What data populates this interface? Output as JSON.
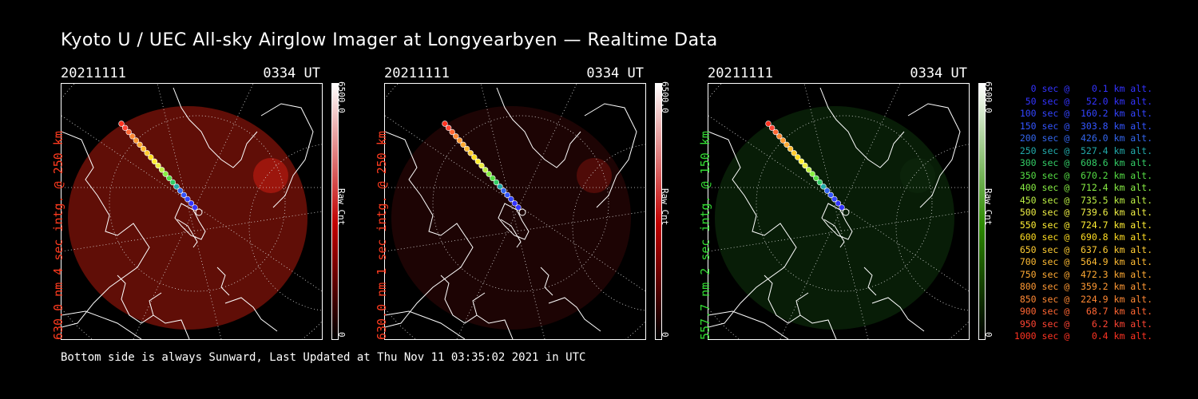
{
  "title": "Kyoto U / UEC All-sky Airglow Imager at Longyearbyen — Realtime Data",
  "panels": [
    {
      "date": "20211111",
      "time": "0334 UT",
      "label": "630.0 nm 4 sec intg. @ 250 km",
      "label_color": "#ff3b1f",
      "cbar_max": "6500.0",
      "cbar_unit": "Raw Cnt",
      "cbar_min": "0",
      "cbar_color": "#c00000",
      "glow": "#6a0f08",
      "glow_opacity": 0.9
    },
    {
      "date": "20211111",
      "time": "0334 UT",
      "label": "630.0 nm 1 sec intg. @ 250 km",
      "label_color": "#ff3b1f",
      "cbar_max": "6500.0",
      "cbar_unit": "Raw Cnt",
      "cbar_min": "0",
      "cbar_color": "#c00000",
      "glow": "#2a0505",
      "glow_opacity": 0.7
    },
    {
      "date": "20211111",
      "time": "0334 UT",
      "label": "557.7 nm 2 sec intg. @ 150 km",
      "label_color": "#33dd33",
      "cbar_max": "6500.0",
      "cbar_unit": "Raw Cnt",
      "cbar_min": "0",
      "cbar_color": "#2c8a00",
      "glow": "#0c2a0a",
      "glow_opacity": 0.7
    }
  ],
  "legend": [
    {
      "text": "   0 sec @    0.1 km alt.",
      "color": "#3333ff"
    },
    {
      "text": "  50 sec @   52.0 km alt.",
      "color": "#3333ff"
    },
    {
      "text": " 100 sec @  160.2 km alt.",
      "color": "#3344ff"
    },
    {
      "text": " 150 sec @  303.8 km alt.",
      "color": "#3355ff"
    },
    {
      "text": " 200 sec @  426.0 km alt.",
      "color": "#3366ee"
    },
    {
      "text": " 250 sec @  527.4 km alt.",
      "color": "#22aaaa"
    },
    {
      "text": " 300 sec @  608.6 km alt.",
      "color": "#33cc66"
    },
    {
      "text": " 350 sec @  670.2 km alt.",
      "color": "#55dd44"
    },
    {
      "text": " 400 sec @  712.4 km alt.",
      "color": "#88ee44"
    },
    {
      "text": " 450 sec @  735.5 km alt.",
      "color": "#bbee44"
    },
    {
      "text": " 500 sec @  739.6 km alt.",
      "color": "#eeee44"
    },
    {
      "text": " 550 sec @  724.7 km alt.",
      "color": "#ffee33"
    },
    {
      "text": " 600 sec @  690.8 km alt.",
      "color": "#ffdd22"
    },
    {
      "text": " 650 sec @  637.6 km alt.",
      "color": "#ffcc33"
    },
    {
      "text": " 700 sec @  564.9 km alt.",
      "color": "#ffbb33"
    },
    {
      "text": " 750 sec @  472.3 km alt.",
      "color": "#ffaa33"
    },
    {
      "text": " 800 sec @  359.2 km alt.",
      "color": "#ff9933"
    },
    {
      "text": " 850 sec @  224.9 km alt.",
      "color": "#ff8833"
    },
    {
      "text": " 900 sec @   68.7 km alt.",
      "color": "#ff6633"
    },
    {
      "text": " 950 sec @    6.2 km alt.",
      "color": "#ff4433"
    },
    {
      "text": "1000 sec @    0.4 km alt.",
      "color": "#ff3322"
    }
  ],
  "footer": "Bottom side is always Sunward, Last Updated at Thu Nov 11 03:35:02 2021 in UTC"
}
